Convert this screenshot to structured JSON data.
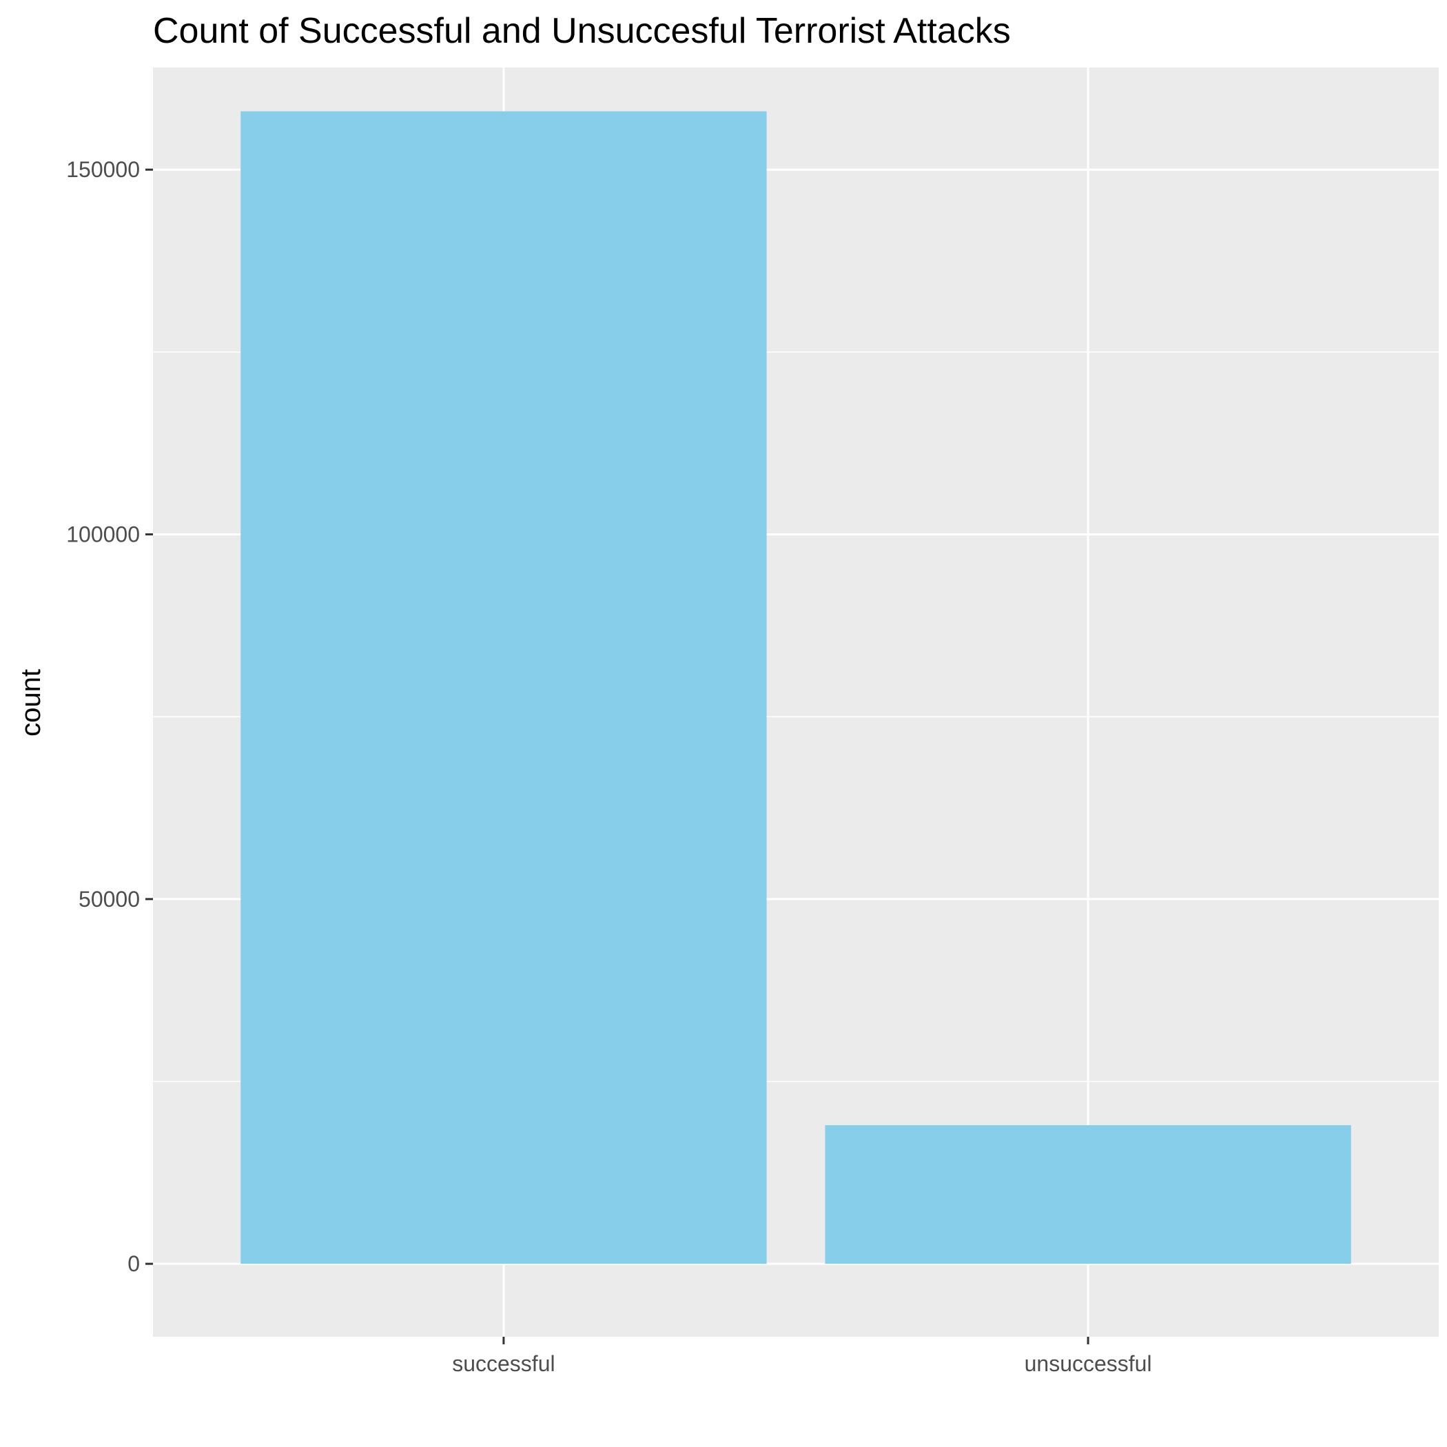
{
  "chart_data": {
    "type": "bar",
    "title": "Count of Successful and Unsuccesful Terrorist Attacks",
    "xlabel": "",
    "ylabel": "count",
    "categories": [
      "successful",
      "unsuccessful"
    ],
    "values": [
      158000,
      19000
    ],
    "ylim": [
      -10000,
      164000
    ],
    "yticks": [
      0,
      50000,
      100000,
      150000
    ],
    "ytick_labels": [
      "0",
      "50000",
      "100000",
      "150000"
    ],
    "grid": true,
    "bar_color": "#87CEEB",
    "panel_color": "#EBEBEB",
    "grid_color": "#FFFFFF"
  }
}
